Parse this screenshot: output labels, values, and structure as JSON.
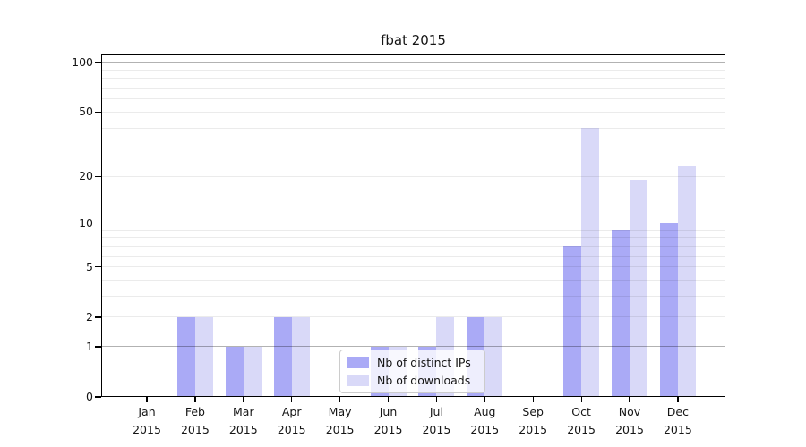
{
  "chart_data": {
    "type": "bar",
    "title": "fbat 2015",
    "year": "2015",
    "months": [
      "Jan",
      "Feb",
      "Mar",
      "Apr",
      "May",
      "Jun",
      "Jul",
      "Aug",
      "Sep",
      "Oct",
      "Nov",
      "Dec"
    ],
    "series": [
      {
        "name": "Nb of distinct IPs",
        "color": "#aaaaf6",
        "values": [
          0,
          2,
          1,
          2,
          0,
          1,
          1,
          2,
          0,
          7,
          9,
          10
        ]
      },
      {
        "name": "Nb of downloads",
        "color": "#d9d9f8",
        "values": [
          0,
          2,
          1,
          2,
          0,
          1,
          2,
          2,
          0,
          40,
          19,
          23
        ]
      }
    ],
    "yticks": [
      0,
      1,
      2,
      5,
      10,
      20,
      50,
      100
    ],
    "scale": "log1p",
    "ylim": [
      0,
      115
    ],
    "grid": {
      "major_values": [
        1,
        10,
        100
      ],
      "minor_values": [
        2,
        3,
        4,
        5,
        6,
        7,
        8,
        9,
        20,
        30,
        40,
        50,
        60,
        70,
        80,
        90
      ]
    },
    "legend_position": "lower-center",
    "xlabel": "",
    "ylabel": ""
  }
}
